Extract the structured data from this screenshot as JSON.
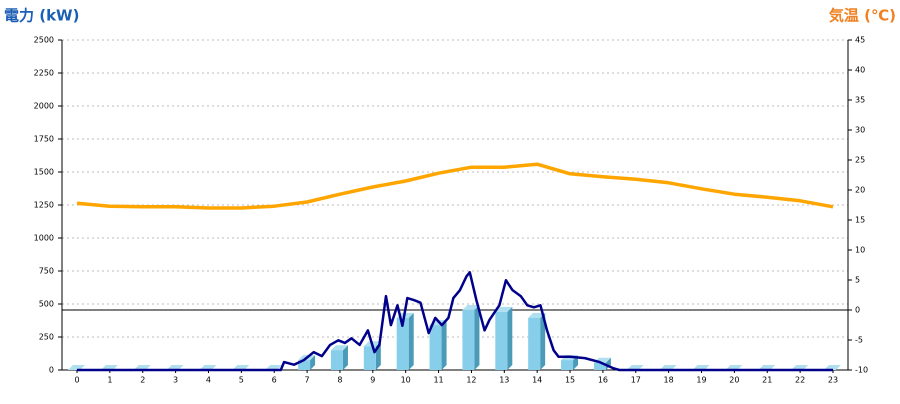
{
  "chart_data": {
    "type": "bar",
    "y_label": "電力 (kW)",
    "y2_label": "気温 (℃)",
    "categories": [
      "0",
      "1",
      "2",
      "3",
      "4",
      "5",
      "6",
      "7",
      "8",
      "9",
      "10",
      "11",
      "12",
      "13",
      "14",
      "15",
      "16",
      "17",
      "18",
      "19",
      "20",
      "21",
      "22",
      "23"
    ],
    "ylim": [
      0,
      2500
    ],
    "yticks": [
      0,
      250,
      500,
      750,
      1000,
      1250,
      1500,
      1750,
      2000,
      2250,
      2500
    ],
    "y2lim": [
      -10,
      45
    ],
    "y2ticks": [
      -10,
      -5,
      0,
      5,
      10,
      15,
      20,
      25,
      30,
      35,
      40,
      45
    ],
    "grid": true,
    "y2_zero_line": true,
    "series": [
      {
        "name": "電力",
        "type": "bar",
        "color": "#87ceeb",
        "values": [
          0,
          0,
          0,
          0,
          0,
          0,
          0,
          75,
          150,
          180,
          395,
          340,
          455,
          440,
          395,
          75,
          55,
          0,
          0,
          0,
          0,
          0,
          0,
          0
        ]
      },
      {
        "name": "電力",
        "type": "line",
        "color": "#00008b",
        "x": [
          0,
          6.2,
          6.3,
          6.6,
          6.9,
          7.2,
          7.45,
          7.7,
          7.95,
          8.15,
          8.35,
          8.6,
          8.85,
          9.05,
          9.2,
          9.4,
          9.55,
          9.75,
          9.9,
          10.05,
          10.25,
          10.45,
          10.7,
          10.9,
          11.1,
          11.3,
          11.45,
          11.65,
          11.85,
          11.95,
          12.15,
          12.4,
          12.55,
          12.85,
          13.05,
          13.25,
          13.5,
          13.7,
          13.9,
          14.1,
          14.3,
          14.5,
          14.65,
          15,
          15.45,
          15.9,
          16.3,
          16.5,
          23
        ],
        "values": [
          0,
          0,
          60,
          40,
          75,
          135,
          105,
          190,
          225,
          205,
          240,
          190,
          300,
          135,
          190,
          560,
          340,
          490,
          335,
          545,
          530,
          510,
          280,
          395,
          340,
          395,
          545,
          605,
          710,
          740,
          530,
          300,
          380,
          490,
          680,
          605,
          560,
          490,
          475,
          490,
          300,
          150,
          100,
          100,
          90,
          60,
          15,
          0,
          0
        ]
      },
      {
        "name": "気温",
        "type": "line",
        "axis": "y2",
        "color": "#ffa500",
        "values": [
          17.8,
          17.3,
          17.2,
          17.2,
          17.0,
          17.0,
          17.3,
          18.0,
          19.3,
          20.5,
          21.5,
          22.8,
          23.8,
          23.8,
          24.3,
          22.7,
          22.2,
          21.8,
          21.2,
          20.2,
          19.3,
          18.8,
          18.2,
          17.2
        ]
      }
    ]
  }
}
